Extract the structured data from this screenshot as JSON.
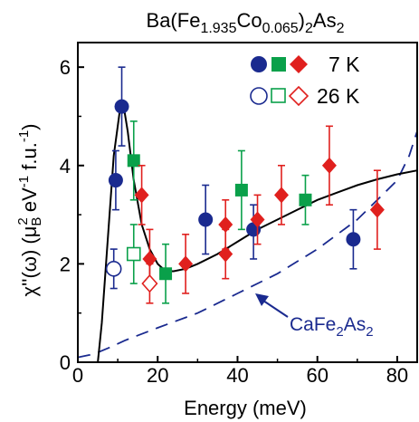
{
  "chart_data": {
    "type": "scatter",
    "title": {
      "base": "Ba(Fe",
      "sub1": "1.935",
      "mid": "Co",
      "sub2": "0.065",
      "end1": ")",
      "sub3": "2",
      "end2": "As",
      "sub4": "2"
    },
    "xlabel": "Energy (meV)",
    "ylabel": {
      "pre": "χ''(ω) (μ",
      "sub": "B",
      "sup": "2",
      "mid": " eV",
      "sup2": "-1",
      "post": " f.u.",
      "sup3": "-1",
      "close": ")"
    },
    "xlim": [
      0,
      85
    ],
    "ylim": [
      0,
      6.5
    ],
    "xticks": [
      0,
      20,
      40,
      60,
      80
    ],
    "yticks": [
      0,
      2,
      4,
      6
    ],
    "legend": {
      "placement": "top-right",
      "labels": [
        "7 K",
        "26 K"
      ]
    },
    "colors": {
      "blue": "#1a2a8f",
      "green": "#0aa04a",
      "red": "#e0201e",
      "black": "#000000",
      "dashed": "#1a2a8f"
    },
    "series": [
      {
        "temperature": "7 K",
        "marker": "circle",
        "filled": true,
        "color": "blue",
        "points": [
          {
            "x": 9.5,
            "y": 3.7,
            "lo": 3.1,
            "hi": 4.3
          },
          {
            "x": 11,
            "y": 5.2,
            "lo": 4.4,
            "hi": 6.0
          },
          {
            "x": 32,
            "y": 2.9,
            "lo": 2.2,
            "hi": 3.6
          },
          {
            "x": 44,
            "y": 2.7,
            "lo": 2.1,
            "hi": 3.2
          },
          {
            "x": 69,
            "y": 2.5,
            "lo": 1.9,
            "hi": 3.1
          }
        ]
      },
      {
        "temperature": "7 K",
        "marker": "square",
        "filled": true,
        "color": "green",
        "points": [
          {
            "x": 14,
            "y": 4.1,
            "lo": 3.3,
            "hi": 4.9
          },
          {
            "x": 22,
            "y": 1.8,
            "lo": 1.2,
            "hi": 2.4
          },
          {
            "x": 41,
            "y": 3.5,
            "lo": 2.7,
            "hi": 4.3
          },
          {
            "x": 57,
            "y": 3.3,
            "lo": 2.8,
            "hi": 3.8
          }
        ]
      },
      {
        "temperature": "7 K",
        "marker": "diamond",
        "filled": true,
        "color": "red",
        "points": [
          {
            "x": 16,
            "y": 3.4,
            "lo": 2.8,
            "hi": 4.0
          },
          {
            "x": 18,
            "y": 2.1,
            "lo": 1.6,
            "hi": 2.7
          },
          {
            "x": 27,
            "y": 2.0,
            "lo": 1.4,
            "hi": 2.6
          },
          {
            "x": 37,
            "y": 2.8,
            "lo": 2.3,
            "hi": 3.3
          },
          {
            "x": 37,
            "y": 2.2,
            "lo": 1.7,
            "hi": 2.7
          },
          {
            "x": 45,
            "y": 2.9,
            "lo": 2.4,
            "hi": 3.4
          },
          {
            "x": 51,
            "y": 3.4,
            "lo": 2.8,
            "hi": 4.0
          },
          {
            "x": 63,
            "y": 4.0,
            "lo": 3.2,
            "hi": 4.8
          },
          {
            "x": 75,
            "y": 3.1,
            "lo": 2.3,
            "hi": 3.9
          }
        ]
      },
      {
        "temperature": "26 K",
        "marker": "circle",
        "filled": false,
        "color": "blue",
        "points": [
          {
            "x": 9,
            "y": 1.9,
            "lo": 1.5,
            "hi": 2.3
          }
        ]
      },
      {
        "temperature": "26 K",
        "marker": "square",
        "filled": false,
        "color": "green",
        "points": [
          {
            "x": 14,
            "y": 2.2,
            "lo": 1.6,
            "hi": 2.8
          }
        ]
      },
      {
        "temperature": "26 K",
        "marker": "diamond",
        "filled": false,
        "color": "red",
        "points": [
          {
            "x": 18,
            "y": 1.6,
            "lo": 1.2,
            "hi": 2.0
          }
        ]
      }
    ],
    "fit_curve": {
      "style": "solid",
      "color": "black",
      "points": [
        [
          5,
          0
        ],
        [
          6,
          0.8
        ],
        [
          7.5,
          2.5
        ],
        [
          9,
          4.2
        ],
        [
          10.5,
          5.1
        ],
        [
          11.5,
          5.2
        ],
        [
          12.5,
          4.7
        ],
        [
          14,
          3.7
        ],
        [
          16,
          2.8
        ],
        [
          18,
          2.3
        ],
        [
          20,
          2.0
        ],
        [
          22,
          1.85
        ],
        [
          24,
          1.85
        ],
        [
          27,
          1.9
        ],
        [
          30,
          2.0
        ],
        [
          35,
          2.2
        ],
        [
          40,
          2.45
        ],
        [
          45,
          2.7
        ],
        [
          50,
          2.9
        ],
        [
          55,
          3.1
        ],
        [
          60,
          3.3
        ],
        [
          65,
          3.45
        ],
        [
          70,
          3.6
        ],
        [
          75,
          3.72
        ],
        [
          80,
          3.82
        ],
        [
          85,
          3.9
        ]
      ]
    },
    "reference_curve": {
      "style": "dashed",
      "color": "dashed",
      "label": {
        "base": "CaFe",
        "sub1": "2",
        "mid": "As",
        "sub2": "2"
      },
      "points": [
        [
          0,
          0.1
        ],
        [
          3,
          0.15
        ],
        [
          5,
          0.2
        ],
        [
          8,
          0.3
        ],
        [
          12,
          0.45
        ],
        [
          20,
          0.7
        ],
        [
          30,
          1.0
        ],
        [
          40,
          1.4
        ],
        [
          50,
          1.8
        ],
        [
          60,
          2.3
        ],
        [
          70,
          2.9
        ],
        [
          75,
          3.3
        ],
        [
          80,
          3.7
        ],
        [
          83,
          4.2
        ],
        [
          85,
          4.7
        ]
      ]
    }
  }
}
